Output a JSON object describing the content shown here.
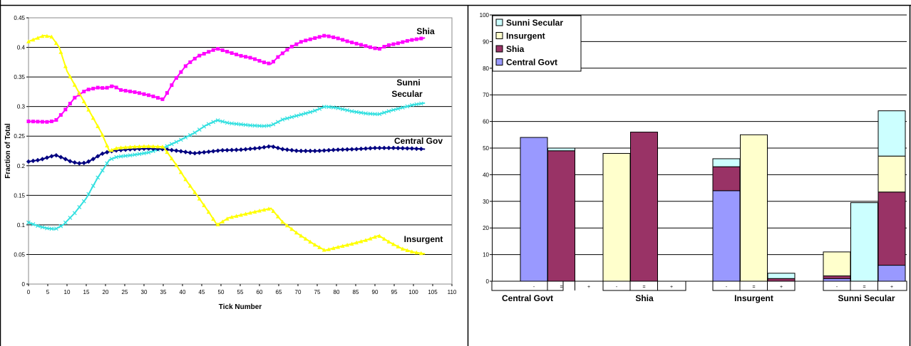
{
  "chart_data": [
    {
      "type": "line",
      "xlabel": "Tick Number",
      "ylabel": "Fraction of Total",
      "xlim": [
        0,
        110
      ],
      "ylim": [
        0,
        0.45
      ],
      "x_ticks": [
        "0",
        "5",
        "10",
        "15",
        "20",
        "25",
        "30",
        "35",
        "40",
        "45",
        "50",
        "55",
        "60",
        "65",
        "70",
        "75",
        "80",
        "85",
        "90",
        "95",
        "100",
        "105",
        "110"
      ],
      "y_ticks": [
        "0",
        "0.05",
        "0.1",
        "0.15",
        "0.2",
        "0.25",
        "0.3",
        "0.35",
        "0.4",
        "0.45"
      ],
      "grid": "horizontal",
      "series": [
        {
          "name": "Shia",
          "label_lines": [
            "Shia"
          ],
          "color": "#ff00ff",
          "marker": "square",
          "x": [
            0,
            5,
            7,
            9,
            12,
            15,
            18,
            20,
            22,
            24,
            28,
            32,
            35,
            38,
            41,
            44,
            47,
            49,
            52,
            55,
            58,
            61,
            63,
            65,
            68,
            71,
            74,
            77,
            80,
            83,
            86,
            89,
            91,
            93,
            96,
            99,
            103
          ],
          "y": [
            0.275,
            0.274,
            0.276,
            0.29,
            0.315,
            0.328,
            0.332,
            0.331,
            0.335,
            0.328,
            0.324,
            0.318,
            0.312,
            0.345,
            0.37,
            0.385,
            0.393,
            0.398,
            0.392,
            0.386,
            0.382,
            0.375,
            0.372,
            0.385,
            0.4,
            0.41,
            0.415,
            0.42,
            0.416,
            0.41,
            0.405,
            0.4,
            0.397,
            0.403,
            0.407,
            0.412,
            0.416
          ]
        },
        {
          "name": "Sunni Secular",
          "label_lines": [
            "Sunni",
            "Secular"
          ],
          "color": "#33e0e0",
          "marker": "x",
          "x": [
            0,
            3,
            5,
            7,
            9,
            12,
            15,
            18,
            21,
            23,
            27,
            31,
            35,
            39,
            43,
            46,
            49,
            52,
            55,
            58,
            61,
            63,
            66,
            70,
            74,
            77,
            80,
            84,
            88,
            91,
            94,
            97,
            100,
            103
          ],
          "y": [
            0.104,
            0.097,
            0.094,
            0.093,
            0.1,
            0.12,
            0.145,
            0.18,
            0.21,
            0.215,
            0.218,
            0.222,
            0.23,
            0.242,
            0.255,
            0.268,
            0.277,
            0.272,
            0.27,
            0.268,
            0.267,
            0.268,
            0.278,
            0.285,
            0.292,
            0.3,
            0.298,
            0.292,
            0.288,
            0.287,
            0.293,
            0.298,
            0.303,
            0.306
          ]
        },
        {
          "name": "Central Gov",
          "label_lines": [
            "Central Gov"
          ],
          "color": "#000080",
          "marker": "diamond",
          "x": [
            0,
            3,
            5,
            7,
            9,
            11,
            13,
            15,
            17,
            19,
            21,
            23,
            27,
            31,
            35,
            39,
            43,
            46,
            50,
            55,
            60,
            63,
            66,
            70,
            75,
            80,
            85,
            90,
            95,
            100,
            103
          ],
          "y": [
            0.207,
            0.21,
            0.214,
            0.218,
            0.213,
            0.207,
            0.204,
            0.205,
            0.212,
            0.22,
            0.224,
            0.226,
            0.228,
            0.229,
            0.228,
            0.225,
            0.221,
            0.223,
            0.226,
            0.227,
            0.23,
            0.233,
            0.228,
            0.225,
            0.225,
            0.227,
            0.228,
            0.23,
            0.23,
            0.229,
            0.228
          ]
        },
        {
          "name": "Insurgent",
          "label_lines": [
            "Insurgent"
          ],
          "color": "#ffff00",
          "marker": "triangle",
          "x": [
            0,
            2,
            4,
            6,
            8,
            10,
            13,
            16,
            19,
            21,
            23,
            27,
            31,
            35,
            38,
            41,
            44,
            47,
            49,
            52,
            56,
            60,
            63,
            66,
            70,
            74,
            77,
            80,
            84,
            88,
            91,
            94,
            97,
            100,
            103
          ],
          "y": [
            0.41,
            0.415,
            0.42,
            0.418,
            0.4,
            0.36,
            0.325,
            0.29,
            0.255,
            0.225,
            0.23,
            0.232,
            0.233,
            0.232,
            0.205,
            0.175,
            0.148,
            0.12,
            0.1,
            0.112,
            0.118,
            0.124,
            0.128,
            0.105,
            0.085,
            0.068,
            0.057,
            0.062,
            0.068,
            0.075,
            0.082,
            0.07,
            0.06,
            0.054,
            0.051
          ]
        }
      ]
    },
    {
      "type": "bar",
      "stacked": true,
      "ylim": [
        0,
        100
      ],
      "y_ticks": [
        "0",
        "10",
        "20",
        "30",
        "40",
        "50",
        "60",
        "70",
        "80",
        "90",
        "100"
      ],
      "grid": "horizontal",
      "legend_position": "top-left",
      "groups": [
        "Central Govt",
        "Shia",
        "Insurgent",
        "Sunni Secular"
      ],
      "subcategories": [
        "-",
        "=",
        "+"
      ],
      "legend_order": [
        "Sunni Secular",
        "Insurgent",
        "Shia",
        "Central Govt"
      ],
      "series": [
        {
          "name": "Central Govt",
          "color": "#9999ff",
          "values": [
            54,
            0,
            0,
            0,
            0,
            0,
            34,
            0,
            0,
            1,
            0,
            6
          ]
        },
        {
          "name": "Shia",
          "color": "#993366",
          "values": [
            0,
            49,
            0,
            0,
            56,
            0,
            9,
            0,
            1,
            1,
            0,
            27.5
          ]
        },
        {
          "name": "Insurgent",
          "color": "#ffffcc",
          "values": [
            0,
            0,
            0,
            48,
            0,
            0,
            0,
            55,
            0,
            9,
            0,
            13.5
          ]
        },
        {
          "name": "Sunni Secular",
          "color": "#ccffff",
          "values": [
            0,
            1,
            0,
            0,
            0,
            0,
            3,
            0,
            2,
            0,
            29.5,
            17
          ]
        }
      ]
    }
  ]
}
